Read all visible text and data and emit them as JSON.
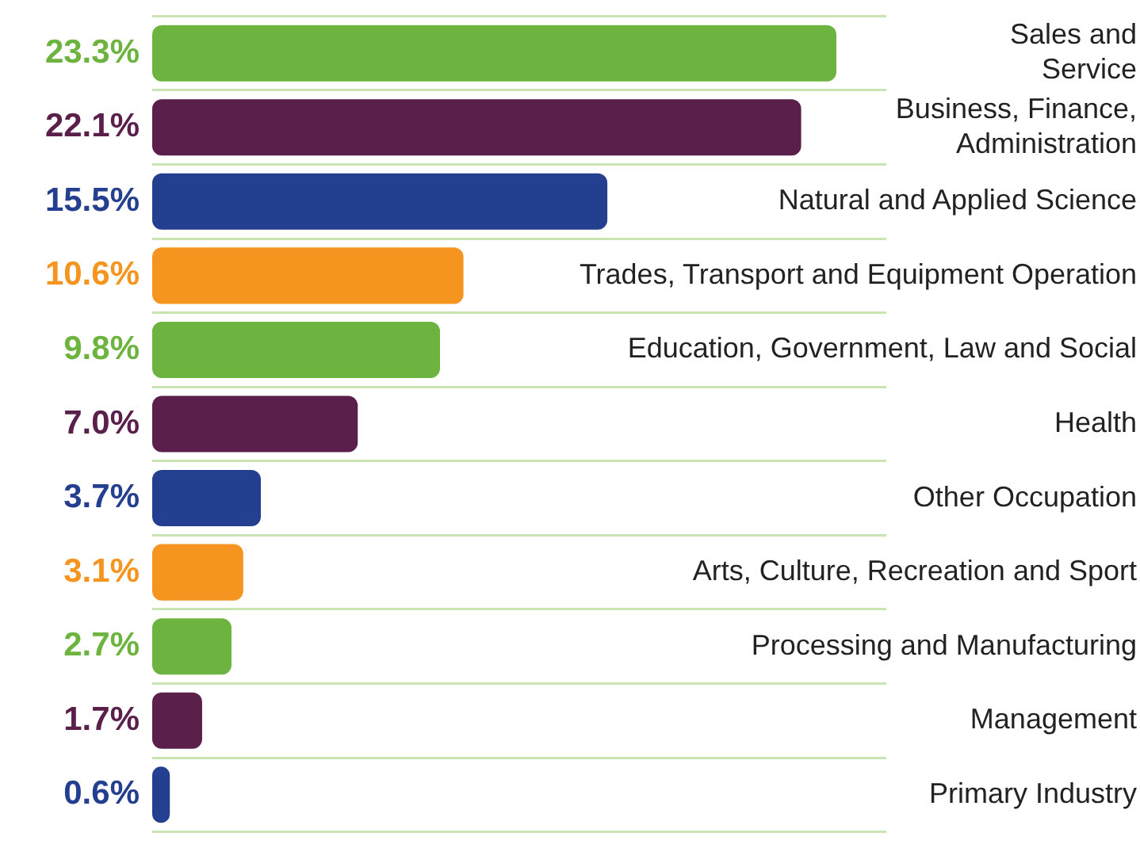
{
  "chart_data": {
    "type": "bar",
    "orientation": "horizontal",
    "grid": "y",
    "categories": [
      "Sales and\nService",
      "Business, Finance,\nAdministration",
      "Natural and Applied Science",
      "Trades, Transport and Equipment Operation",
      "Education, Government, Law and Social",
      "Health",
      "Other Occupation",
      "Arts, Culture, Recreation and Sport",
      "Processing and Manufacturing",
      "Management",
      "Primary Industry"
    ],
    "values": [
      23.3,
      22.1,
      15.5,
      10.6,
      9.8,
      7.0,
      3.7,
      3.1,
      2.7,
      1.7,
      0.6
    ],
    "value_labels": [
      "23.3%",
      "22.1%",
      "15.5%",
      "10.6%",
      "9.8%",
      "7.0%",
      "3.7%",
      "3.1%",
      "2.7%",
      "1.7%",
      "0.6%"
    ],
    "colors": [
      "#6db33f",
      "#5a1f4b",
      "#243f8f",
      "#f5941e",
      "#6db33f",
      "#5a1f4b",
      "#243f8f",
      "#f5941e",
      "#6db33f",
      "#5a1f4b",
      "#243f8f"
    ],
    "tick_labels": "y"
  }
}
